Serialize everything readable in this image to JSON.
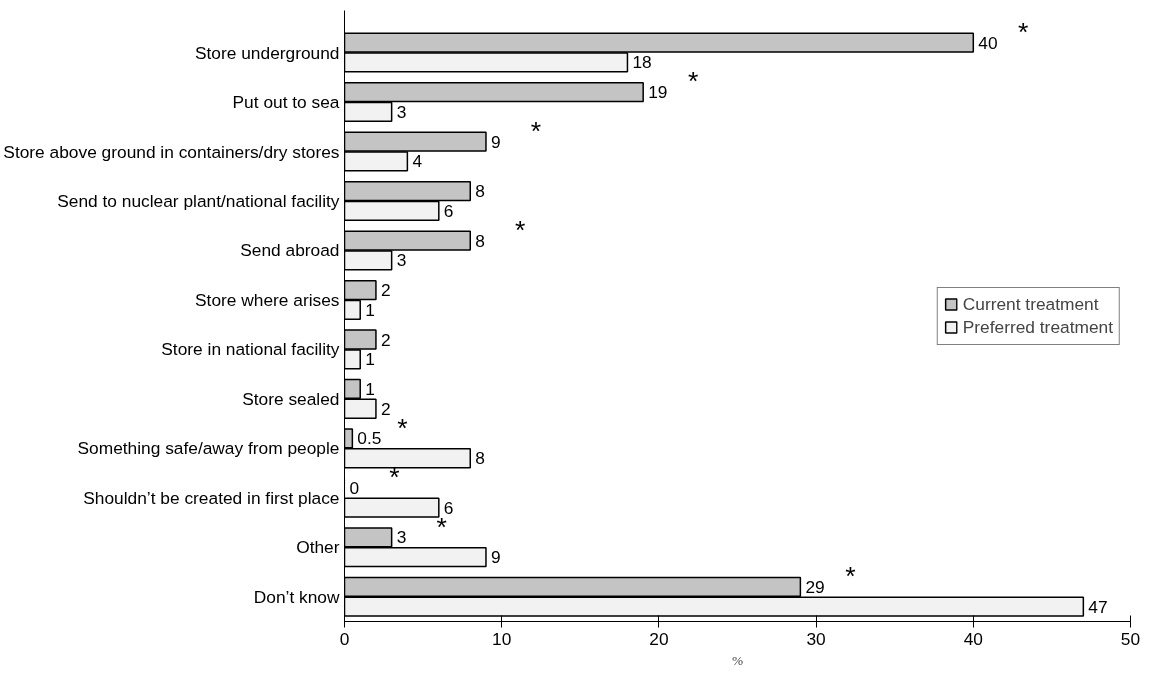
{
  "chart_data": {
    "type": "bar",
    "orientation": "horizontal",
    "xlabel": "%",
    "categories": [
      "Store underground",
      "Put out to sea",
      "Store above ground in containers/dry stores",
      "Send to nuclear plant/national facility",
      "Send abroad",
      "Store where arises",
      "Store in national facility",
      "Store sealed",
      "Something safe/away from people",
      "Shouldn’t be created in first place",
      "Other",
      "Don’t know"
    ],
    "series": [
      {
        "name": "Current treatment",
        "color": "#c4c4c4",
        "values": [
          40,
          19,
          9,
          8,
          8,
          2,
          2,
          1,
          0.5,
          0,
          3,
          29
        ]
      },
      {
        "name": "Preferred treatment",
        "color": "#f2f2f2",
        "values": [
          18,
          3,
          4,
          6,
          3,
          1,
          1,
          2,
          8,
          6,
          9,
          47
        ]
      }
    ],
    "xlim": [
      0,
      50
    ],
    "xticks": [
      0,
      10,
      20,
      30,
      40,
      50
    ],
    "data_labels": true,
    "legend": "right",
    "grid": false,
    "annotations": [
      "*",
      "*",
      "*",
      "*",
      "*",
      "*",
      "*",
      "*"
    ]
  }
}
